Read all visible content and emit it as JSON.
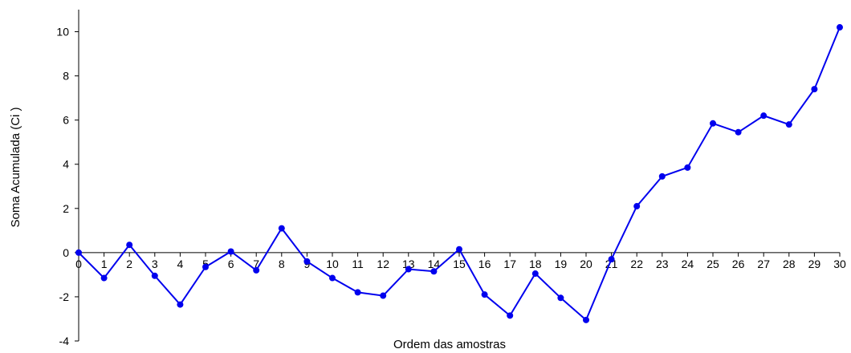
{
  "chart_data": {
    "type": "line",
    "xlabel": "Ordem das amostras",
    "ylabel": "Soma Acumulada (Ci )",
    "ylim": [
      -4,
      11
    ],
    "yticks": [
      -4,
      -2,
      0,
      2,
      4,
      6,
      8,
      10
    ],
    "xlim": [
      0,
      30
    ],
    "grid": false,
    "color": "#0000ee",
    "x": [
      0,
      1,
      2,
      3,
      4,
      5,
      6,
      7,
      8,
      9,
      10,
      11,
      12,
      13,
      14,
      15,
      16,
      17,
      18,
      19,
      20,
      21,
      22,
      23,
      24,
      25,
      26,
      27,
      28,
      29,
      30
    ],
    "y": [
      0,
      -1.15,
      0.35,
      -1.05,
      -2.35,
      -0.65,
      0.05,
      -0.8,
      1.1,
      -0.4,
      -1.15,
      -1.8,
      -1.95,
      -0.75,
      -0.85,
      0.15,
      -1.9,
      -2.85,
      -0.95,
      -2.05,
      -3.05,
      -0.3,
      2.1,
      3.45,
      3.85,
      5.85,
      5.45,
      6.2,
      5.8,
      7.4,
      10.2
    ]
  }
}
